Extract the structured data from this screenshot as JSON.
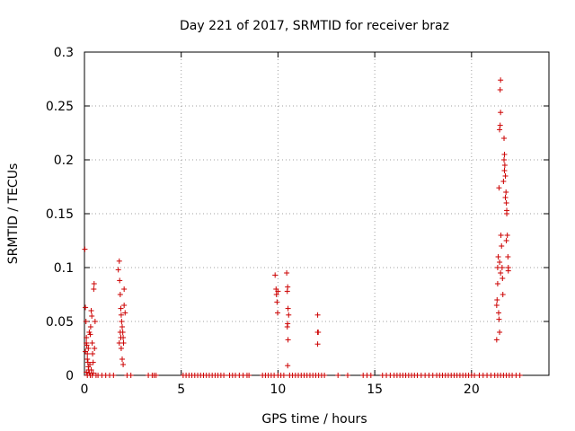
{
  "chart_data": {
    "type": "scatter",
    "title": "Day 221 of 2017, SRMTID for receiver braz",
    "xlabel": "GPS time / hours",
    "ylabel": "SRMTID / TECUs",
    "xlim": [
      0,
      24
    ],
    "ylim": [
      0,
      0.3
    ],
    "x_ticks": [
      0,
      5,
      10,
      15,
      20
    ],
    "x_tick_labels": [
      "0",
      "5",
      "10",
      "15",
      "20"
    ],
    "y_ticks": [
      0,
      0.05,
      0.1,
      0.15,
      0.2,
      0.25,
      0.3
    ],
    "y_tick_labels": [
      "0",
      "0.05",
      "0.1",
      "0.15",
      "0.2",
      "0.25",
      "0.3"
    ],
    "grid": true,
    "marker": "+",
    "color": "#cc0000",
    "series": [
      {
        "name": "SRMTID",
        "points": [
          [
            0.02,
            0.117
          ],
          [
            0.05,
            0.063
          ],
          [
            0.08,
            0.05
          ],
          [
            0.1,
            0.035
          ],
          [
            0.12,
            0.028
          ],
          [
            0.15,
            0.02
          ],
          [
            0.18,
            0.012
          ],
          [
            0.2,
            0.008
          ],
          [
            0.22,
            0.005
          ],
          [
            0.25,
            0.002
          ],
          [
            0.05,
            0.022
          ],
          [
            0.1,
            0.03
          ],
          [
            0.15,
            0.015
          ],
          [
            0.2,
            0.025
          ],
          [
            0.25,
            0.04
          ],
          [
            0.28,
            0.01
          ],
          [
            0.3,
            0.038
          ],
          [
            0.32,
            0.045
          ],
          [
            0.35,
            0.06
          ],
          [
            0.38,
            0.055
          ],
          [
            0.4,
            0.03
          ],
          [
            0.42,
            0.02
          ],
          [
            0.45,
            0.012
          ],
          [
            0.48,
            0.08
          ],
          [
            0.5,
            0.085
          ],
          [
            0.52,
            0.025
          ],
          [
            0.55,
            0.05
          ],
          [
            0.35,
            0.005
          ],
          [
            0.4,
            0.0
          ],
          [
            0.3,
            0.0
          ],
          [
            0.6,
            0.0
          ],
          [
            0.15,
            0.0
          ],
          [
            0.45,
            0.002
          ],
          [
            0.1,
            0.003
          ],
          [
            1.75,
            0.098
          ],
          [
            1.8,
            0.106
          ],
          [
            1.82,
            0.088
          ],
          [
            1.85,
            0.075
          ],
          [
            1.88,
            0.062
          ],
          [
            1.9,
            0.056
          ],
          [
            1.92,
            0.05
          ],
          [
            1.95,
            0.045
          ],
          [
            1.98,
            0.04
          ],
          [
            2.0,
            0.035
          ],
          [
            2.02,
            0.03
          ],
          [
            2.05,
            0.08
          ],
          [
            2.05,
            0.065
          ],
          [
            1.9,
            0.025
          ],
          [
            1.95,
            0.015
          ],
          [
            2.0,
            0.01
          ],
          [
            1.8,
            0.03
          ],
          [
            1.85,
            0.04
          ],
          [
            2.1,
            0.058
          ],
          [
            1.88,
            0.035
          ],
          [
            9.85,
            0.093
          ],
          [
            9.9,
            0.08
          ],
          [
            9.92,
            0.075
          ],
          [
            9.95,
            0.068
          ],
          [
            9.98,
            0.058
          ],
          [
            10.0,
            0.078
          ],
          [
            10.45,
            0.095
          ],
          [
            10.5,
            0.082
          ],
          [
            10.48,
            0.078
          ],
          [
            10.52,
            0.062
          ],
          [
            10.55,
            0.056
          ],
          [
            10.5,
            0.048
          ],
          [
            10.48,
            0.045
          ],
          [
            10.52,
            0.033
          ],
          [
            10.5,
            0.009
          ],
          [
            12.05,
            0.056
          ],
          [
            12.05,
            0.04
          ],
          [
            12.08,
            0.04
          ],
          [
            12.05,
            0.029
          ],
          [
            21.3,
            0.065
          ],
          [
            21.32,
            0.07
          ],
          [
            21.35,
            0.1
          ],
          [
            21.38,
            0.11
          ],
          [
            21.4,
            0.058
          ],
          [
            21.42,
            0.052
          ],
          [
            21.45,
            0.04
          ],
          [
            21.3,
            0.033
          ],
          [
            21.35,
            0.085
          ],
          [
            21.42,
            0.174
          ],
          [
            21.45,
            0.228
          ],
          [
            21.48,
            0.232
          ],
          [
            21.5,
            0.244
          ],
          [
            21.48,
            0.265
          ],
          [
            21.5,
            0.274
          ],
          [
            21.52,
            0.13
          ],
          [
            21.55,
            0.12
          ],
          [
            21.58,
            0.1
          ],
          [
            21.6,
            0.09
          ],
          [
            21.62,
            0.075
          ],
          [
            21.65,
            0.18
          ],
          [
            21.68,
            0.22
          ],
          [
            21.7,
            0.205
          ],
          [
            21.72,
            0.195
          ],
          [
            21.75,
            0.185
          ],
          [
            21.78,
            0.17
          ],
          [
            21.8,
            0.16
          ],
          [
            21.82,
            0.15
          ],
          [
            21.85,
            0.13
          ],
          [
            21.88,
            0.11
          ],
          [
            21.9,
            0.1
          ],
          [
            21.8,
            0.125
          ],
          [
            21.82,
            0.153
          ],
          [
            21.75,
            0.165
          ],
          [
            21.7,
            0.19
          ],
          [
            21.68,
            0.2
          ],
          [
            21.9,
            0.097
          ],
          [
            21.45,
            0.105
          ],
          [
            21.5,
            0.095
          ]
        ]
      }
    ],
    "zero_points_x": [
      0.7,
      0.9,
      1.1,
      1.3,
      1.5,
      2.2,
      2.4,
      3.3,
      3.5,
      3.6,
      3.7,
      5.1,
      5.25,
      5.4,
      5.55,
      5.7,
      5.85,
      6.0,
      6.15,
      6.3,
      6.45,
      6.6,
      6.75,
      6.9,
      7.05,
      7.2,
      7.5,
      7.65,
      7.8,
      8.0,
      8.2,
      8.4,
      8.5,
      9.2,
      9.35,
      9.5,
      9.65,
      9.8,
      10.0,
      10.15,
      10.3,
      10.6,
      10.75,
      10.9,
      11.05,
      11.2,
      11.35,
      11.5,
      11.65,
      11.8,
      11.95,
      12.1,
      12.25,
      12.4,
      13.1,
      13.6,
      14.4,
      14.6,
      14.8,
      15.4,
      15.6,
      15.8,
      16.0,
      16.15,
      16.3,
      16.45,
      16.6,
      16.75,
      16.9,
      17.05,
      17.2,
      17.4,
      17.6,
      17.8,
      18.0,
      18.2,
      18.35,
      18.5,
      18.65,
      18.8,
      18.95,
      19.1,
      19.25,
      19.4,
      19.55,
      19.7,
      19.85,
      20.0,
      20.15,
      20.4,
      20.6,
      20.8,
      21.0,
      21.2,
      21.35,
      21.5,
      21.65,
      21.8,
      21.95,
      22.1,
      22.3,
      22.5
    ]
  }
}
